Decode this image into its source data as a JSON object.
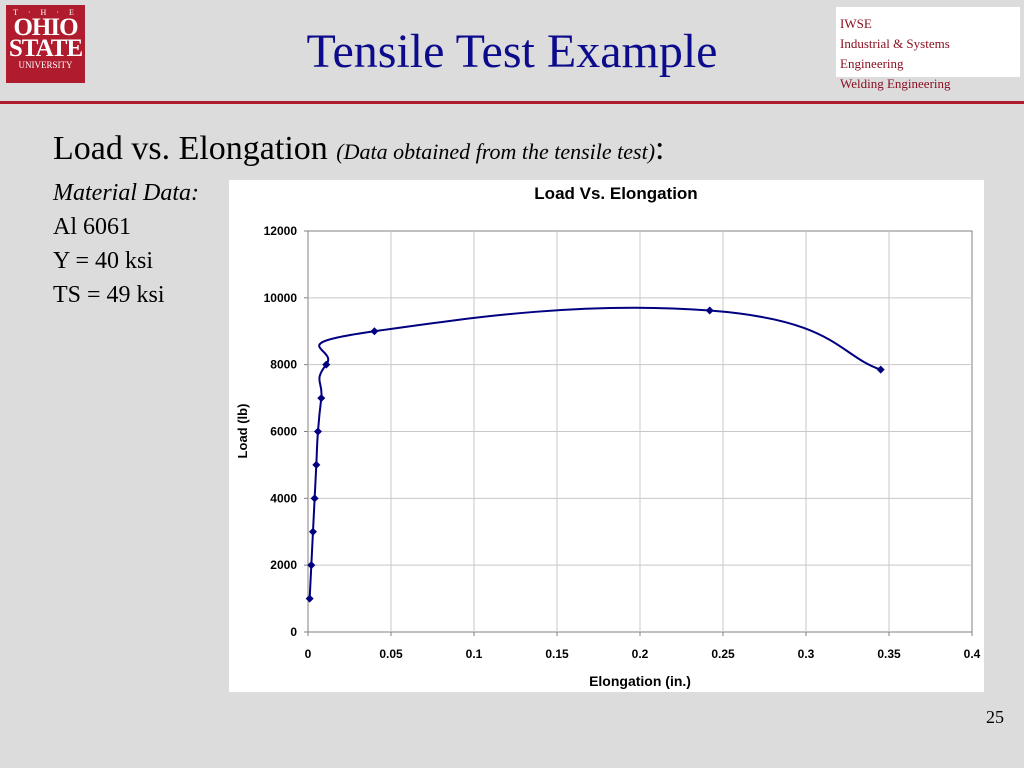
{
  "logo": {
    "the": "T · H · E",
    "line1": "OHIO",
    "line2": "STATE",
    "line3": "UNIVERSITY"
  },
  "slide_title": "Tensile Test Example",
  "dept": {
    "line1": "IWSE",
    "line2": "Industrial & Systems Engineering",
    "line3": "Welding Engineering"
  },
  "heading": {
    "main": "Load vs. Elongation",
    "sub": "(Data obtained from the tensile test)",
    "colon": ":"
  },
  "material": {
    "label": "Material Data:",
    "alloy": "Al 6061",
    "yield": "Y = 40 ksi",
    "tensile": "TS = 49 ksi"
  },
  "page_number": "25",
  "chart_data": {
    "type": "scatter",
    "title": "Load Vs. Elongation",
    "xlabel": "Elongation (in.)",
    "ylabel": "Load (lb)",
    "xlim": [
      0,
      0.4
    ],
    "ylim": [
      0,
      12000
    ],
    "xticks": [
      "0",
      "0.05",
      "0.1",
      "0.15",
      "0.2",
      "0.25",
      "0.3",
      "0.35",
      "0.4"
    ],
    "yticks": [
      "0",
      "2000",
      "4000",
      "6000",
      "8000",
      "10000",
      "12000"
    ],
    "grid": true,
    "line_color": "#000080",
    "series": [
      {
        "x": [
          0.001,
          0.002,
          0.003,
          0.004,
          0.005,
          0.006,
          0.008,
          0.011,
          0.04,
          0.242,
          0.345
        ],
        "y": [
          1000,
          2000,
          3000,
          4000,
          5000,
          6000,
          7000,
          8000,
          9000,
          9620,
          7850
        ]
      }
    ]
  }
}
